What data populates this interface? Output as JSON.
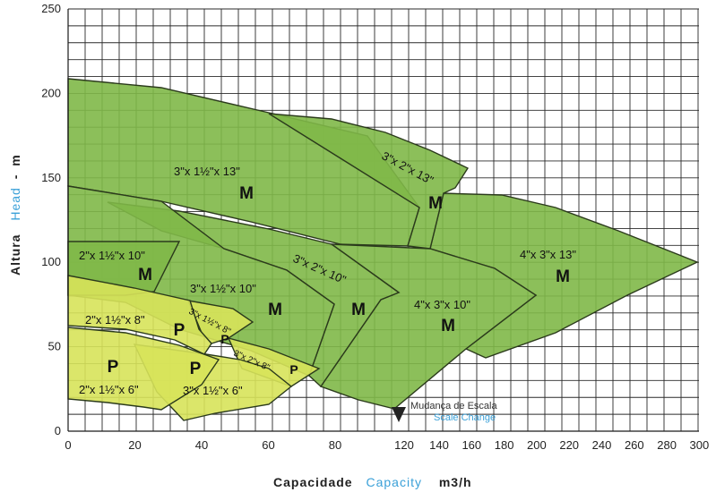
{
  "chart_data": {
    "type": "area",
    "xlabel_pt": "Capacidade",
    "xlabel_en": "Capacity",
    "xunit": "m3/h",
    "ylabel_pt": "Altura",
    "ylabel_en": "Head",
    "yunit": "m",
    "ylim": [
      0,
      250
    ],
    "yticks": [
      "0",
      "50",
      "100",
      "150",
      "200",
      "250"
    ],
    "xlim_low_scale": [
      0,
      120
    ],
    "xticks_low_scale": [
      "0",
      "20",
      "40",
      "60",
      "80",
      "120"
    ],
    "xticks_high_scale": [
      "140",
      "160",
      "180",
      "200",
      "220",
      "240",
      "260",
      "280",
      "300"
    ],
    "scale_change_note_pt": "Mudança de Escala",
    "scale_change_note_en": "Scale Change",
    "grid": true,
    "colors": {
      "M": "#7fb848",
      "P": "#d7e35a"
    },
    "regions": [
      {
        "size": "4\"x 3\"x 13\"",
        "class": "M"
      },
      {
        "size": "3\"x 1½\"x 13\"",
        "class": "M"
      },
      {
        "size": "3\"x 2\"x 13\"",
        "class": "M"
      },
      {
        "size": "4\"x 3\"x 10\"",
        "class": "M"
      },
      {
        "size": "3\"x 2\"x 10\"",
        "class": "M"
      },
      {
        "size": "3\"x 1½\"x 10\"",
        "class": "M"
      },
      {
        "size": "2\"x 1½\"x 10\"",
        "class": "M"
      },
      {
        "size": "3\"x 2\"x 8\"",
        "class": "P"
      },
      {
        "size": "3\"x 1½\"x 8\"",
        "class": "P"
      },
      {
        "size": "2\"x 1½\"x 8\"",
        "class": "P"
      },
      {
        "size": "3\"x 1½\"x 6\"",
        "class": "P"
      },
      {
        "size": "2\"x 1½\"x 6\"",
        "class": "P"
      }
    ]
  }
}
